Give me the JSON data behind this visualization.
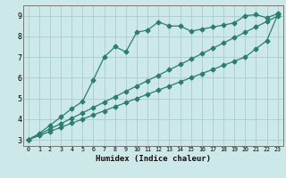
{
  "xlabel": "Humidex (Indice chaleur)",
  "xlim": [
    -0.5,
    23.5
  ],
  "ylim": [
    2.7,
    9.5
  ],
  "yticks": [
    3,
    4,
    5,
    6,
    7,
    8,
    9
  ],
  "xticks": [
    0,
    1,
    2,
    3,
    4,
    5,
    6,
    7,
    8,
    9,
    10,
    11,
    12,
    13,
    14,
    15,
    16,
    17,
    18,
    19,
    20,
    21,
    22,
    23
  ],
  "bg_color": "#cce8e8",
  "grid_color": "#aacccc",
  "line_color": "#2d7d6e",
  "line1_x": [
    0,
    1,
    2,
    3,
    4,
    5,
    6,
    7,
    8,
    9,
    10,
    11,
    12,
    13,
    14,
    15,
    16,
    17,
    18,
    19,
    20,
    21,
    22,
    23
  ],
  "line1_y": [
    3.0,
    3.3,
    3.7,
    4.1,
    4.5,
    4.85,
    5.9,
    7.0,
    7.5,
    7.25,
    8.2,
    8.3,
    8.7,
    8.5,
    8.5,
    8.25,
    8.35,
    8.45,
    8.55,
    8.65,
    9.0,
    9.05,
    8.9,
    9.1
  ],
  "line2_x": [
    0,
    1,
    2,
    3,
    4,
    5,
    6,
    7,
    8,
    9,
    10,
    11,
    12,
    13,
    14,
    15,
    16,
    17,
    18,
    19,
    20,
    21,
    22,
    23
  ],
  "line2_y": [
    3.0,
    3.26,
    3.52,
    3.78,
    4.04,
    4.3,
    4.56,
    4.82,
    5.08,
    5.34,
    5.6,
    5.86,
    6.12,
    6.38,
    6.64,
    6.9,
    7.16,
    7.42,
    7.68,
    7.94,
    8.2,
    8.46,
    8.72,
    8.98
  ],
  "line3_x": [
    0,
    1,
    2,
    3,
    4,
    5,
    6,
    7,
    8,
    9,
    10,
    11,
    12,
    13,
    14,
    15,
    16,
    17,
    18,
    19,
    20,
    21,
    22,
    23
  ],
  "line3_y": [
    3.0,
    3.2,
    3.4,
    3.6,
    3.8,
    4.0,
    4.2,
    4.4,
    4.6,
    4.8,
    5.0,
    5.2,
    5.4,
    5.6,
    5.8,
    6.0,
    6.2,
    6.4,
    6.6,
    6.8,
    7.0,
    7.4,
    7.8,
    9.05
  ],
  "marker_size": 2.5,
  "line_width": 0.9
}
